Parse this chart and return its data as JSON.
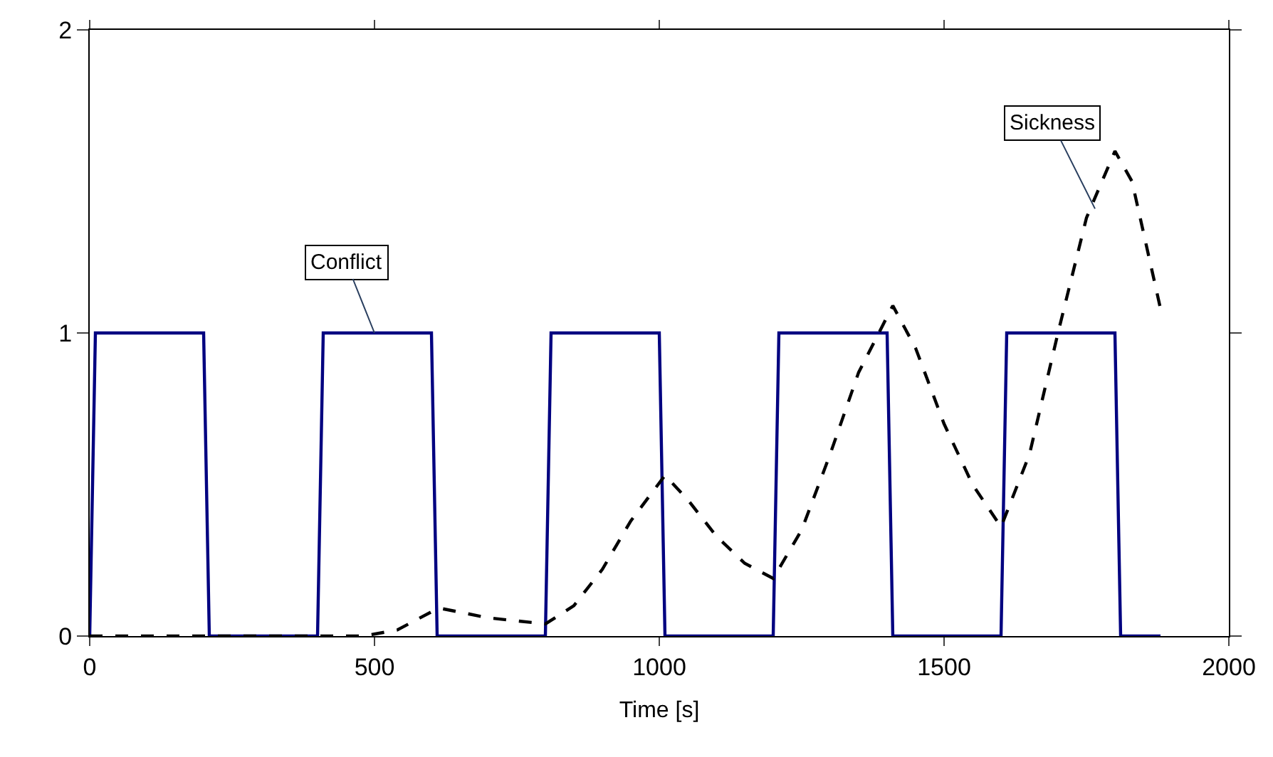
{
  "chart_data": {
    "type": "line",
    "xlabel": "Time [s]",
    "xlim": [
      0,
      2000
    ],
    "xticks": [
      0,
      500,
      1000,
      1500,
      2000
    ],
    "ylim": [
      0,
      2
    ],
    "yticks": [
      0,
      1,
      2
    ],
    "marker": "none",
    "series": [
      {
        "color": "#000080",
        "line_style": "solid",
        "x": [
          0,
          10,
          200,
          210,
          400,
          410,
          600,
          610,
          800,
          810,
          1000,
          1010,
          1200,
          1210,
          1400,
          1410,
          1600,
          1610,
          1800,
          1810,
          1880
        ],
        "values": [
          0,
          1,
          1,
          0,
          0,
          1,
          1,
          0,
          0,
          1,
          1,
          0,
          0,
          1,
          1,
          0,
          0,
          1,
          1,
          0,
          0
        ]
      },
      {
        "color": "#000000",
        "line_style": "dashed",
        "x": [
          0,
          100,
          200,
          300,
          400,
          480,
          540,
          600,
          620,
          700,
          800,
          850,
          900,
          950,
          1010,
          1050,
          1100,
          1150,
          1200,
          1250,
          1300,
          1350,
          1410,
          1450,
          1500,
          1550,
          1600,
          1650,
          1700,
          1750,
          1800,
          1830,
          1880
        ],
        "values": [
          0,
          0,
          0,
          0,
          0,
          0,
          0.02,
          0.08,
          0.09,
          0.06,
          0.04,
          0.1,
          0.22,
          0.38,
          0.53,
          0.45,
          0.33,
          0.24,
          0.19,
          0.35,
          0.6,
          0.87,
          1.09,
          0.95,
          0.7,
          0.5,
          0.36,
          0.6,
          1.0,
          1.38,
          1.6,
          1.5,
          1.08
        ]
      }
    ],
    "annotations": [
      {
        "text": "Conflict",
        "x": 500,
        "y": 1
      },
      {
        "text": "Sickness",
        "x": 1765,
        "y": 1.41
      }
    ]
  }
}
